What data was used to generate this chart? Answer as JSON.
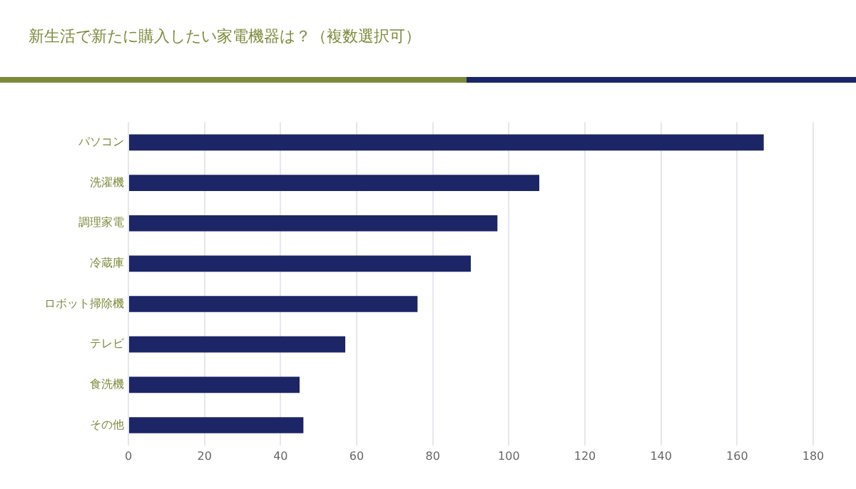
{
  "chart_data": {
    "type": "bar",
    "orientation": "horizontal",
    "title": "新生活で新たに購入したい家電機器は？（複数選択可）",
    "categories": [
      "パソコン",
      "洗濯機",
      "調理家電",
      "冷蔵庫",
      "ロボット掃除機",
      "テレビ",
      "食洗機",
      "その他"
    ],
    "values": [
      167,
      108,
      97,
      90,
      76,
      57,
      45,
      46
    ],
    "color": "#1c2566",
    "xlim": [
      0,
      180
    ],
    "xticks": [
      0,
      20,
      40,
      60,
      80,
      100,
      120,
      140,
      160,
      180
    ],
    "grid": "x"
  }
}
